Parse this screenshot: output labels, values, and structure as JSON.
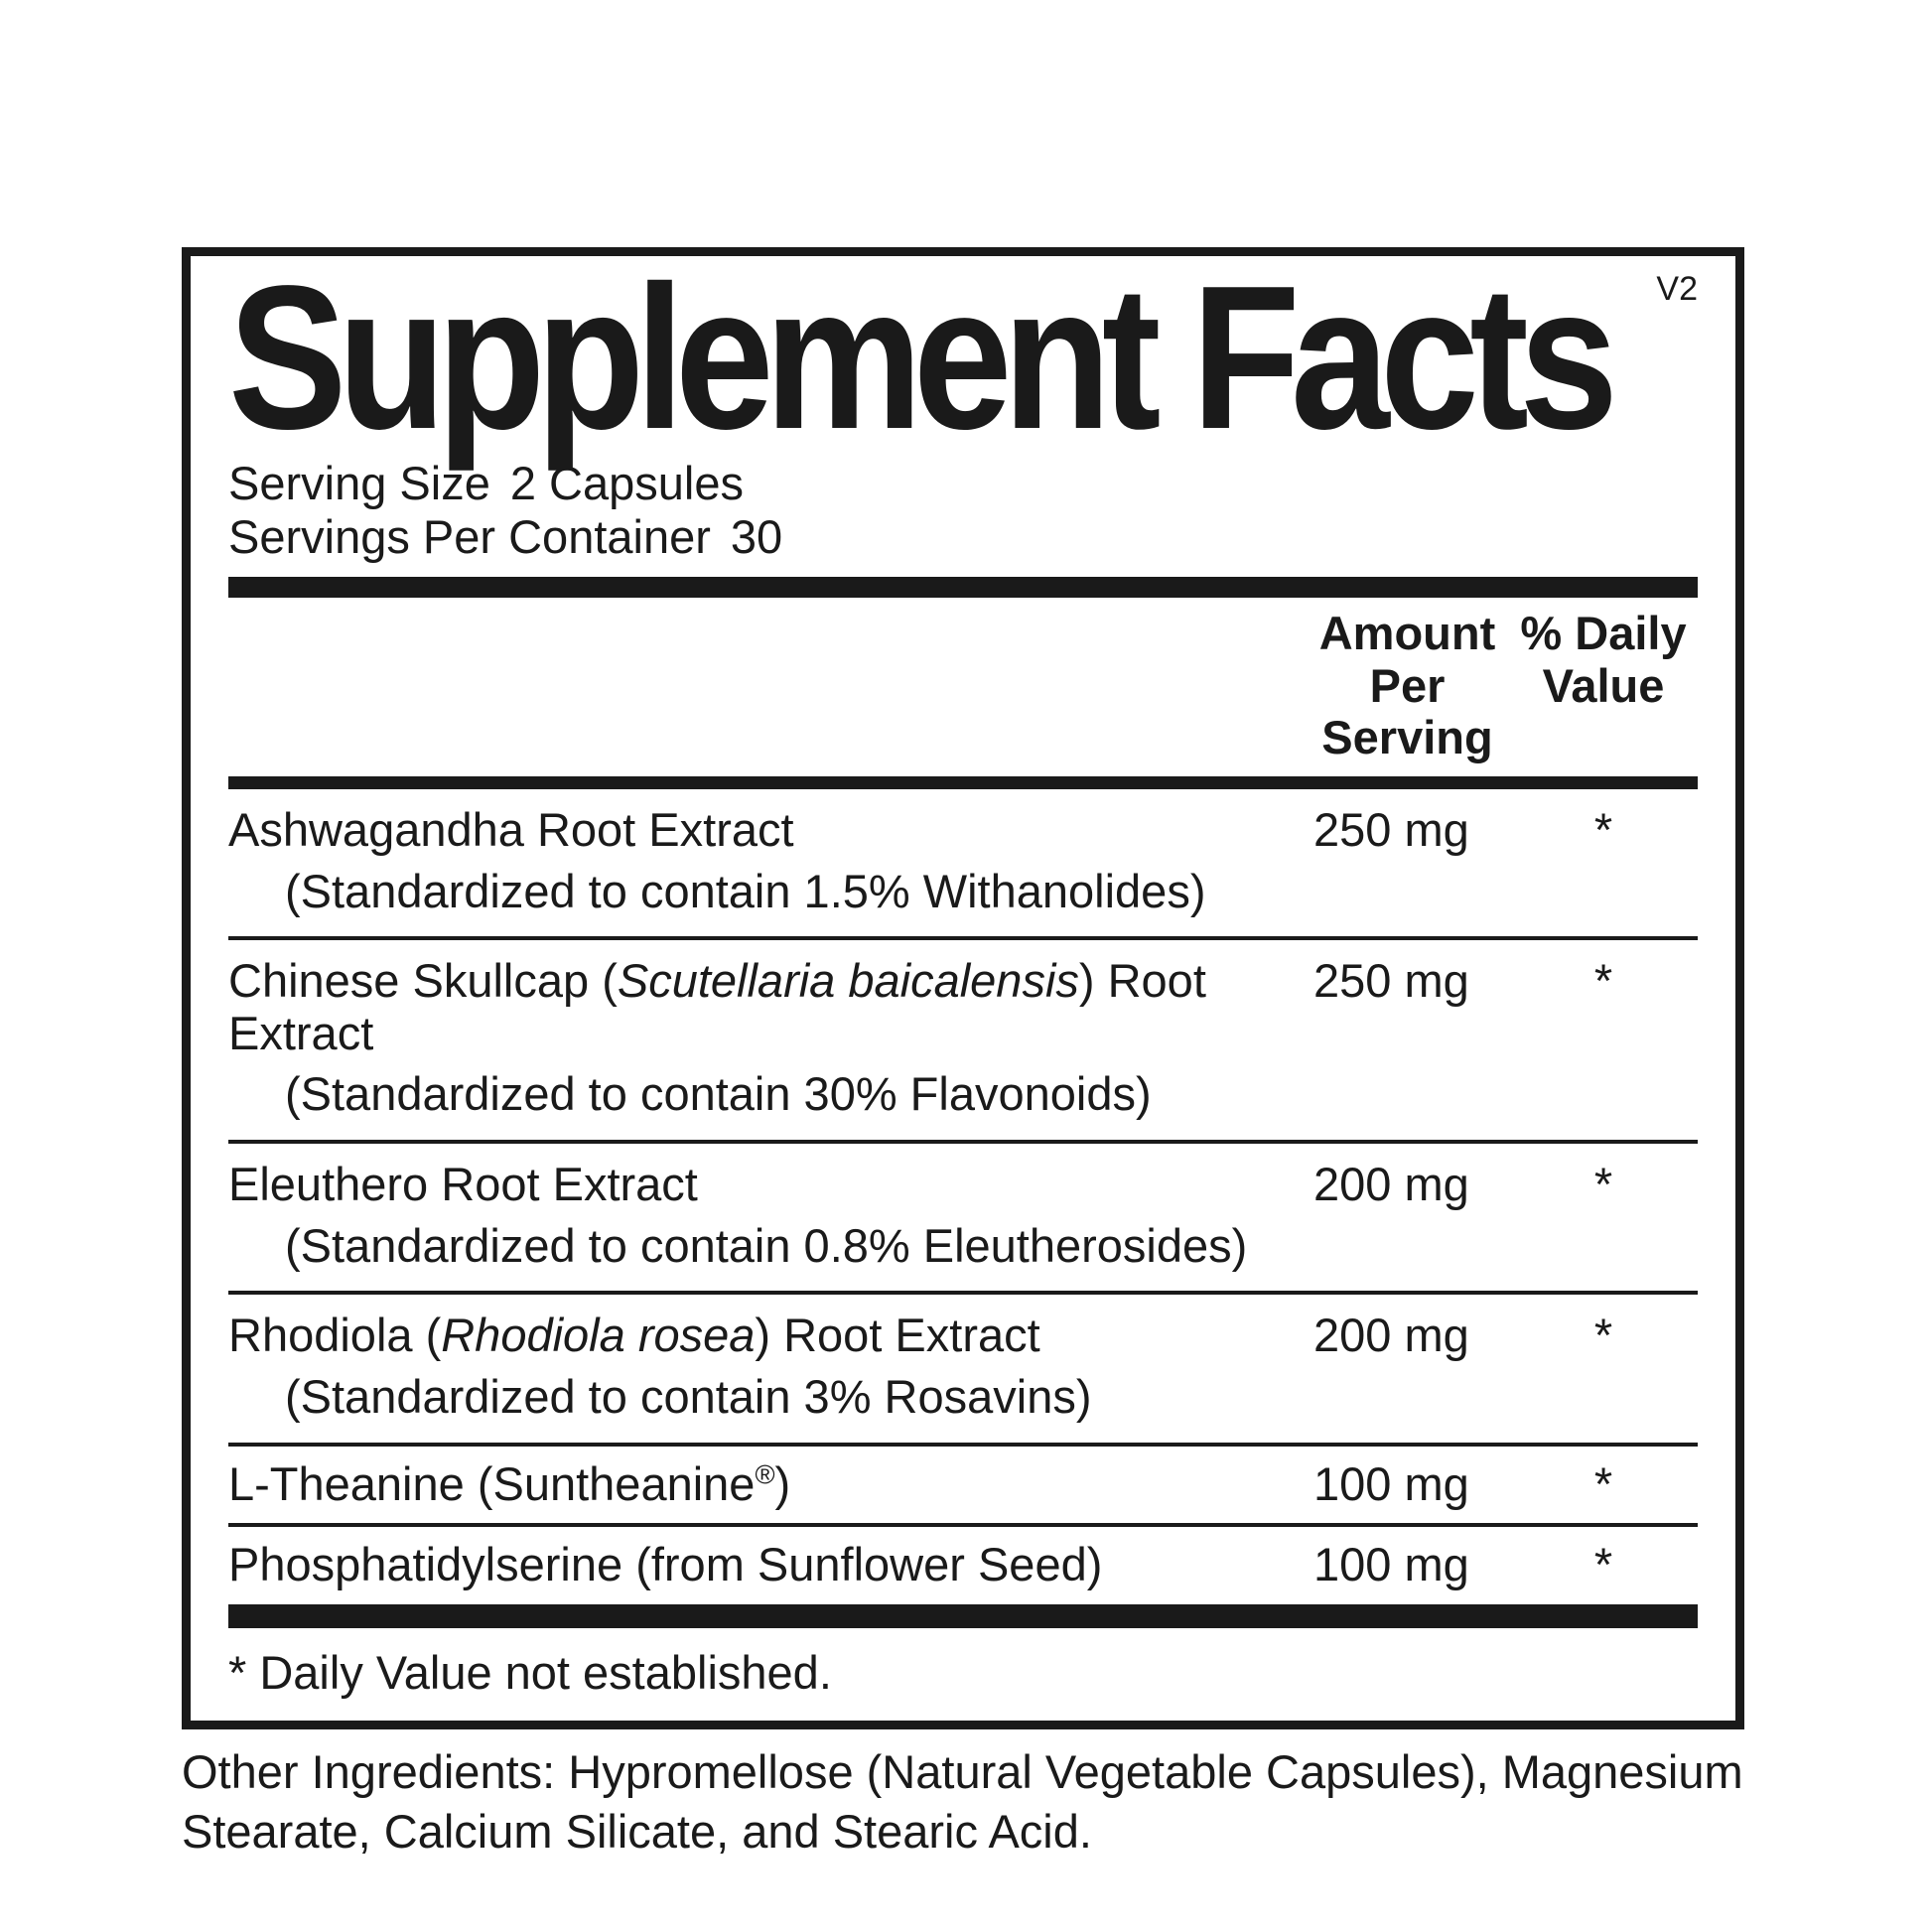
{
  "header": {
    "title": "Supplement Facts",
    "version": "V2"
  },
  "serving_info": {
    "serving_size_label": "Serving Size",
    "serving_size_value": "2 Capsules",
    "servings_per_container_label": "Servings Per Container",
    "servings_per_container_value": "30"
  },
  "table": {
    "col_amount_line1": "Amount Per",
    "col_amount_line2": "Serving",
    "col_dv_line1": "% Daily",
    "col_dv_line2": "Value",
    "rows": [
      {
        "prefix": "Ashwagandha Root Extract",
        "italic": "",
        "sup": "",
        "suffix": "",
        "sub": "(Standardized to contain 1.5% Withanolides)",
        "amount": "250 mg",
        "dv": "*"
      },
      {
        "prefix": "Chinese Skullcap (",
        "italic": "Scutellaria baicalensis",
        "sup": "",
        "suffix": ") Root Extract",
        "sub": "(Standardized to contain 30% Flavonoids)",
        "amount": "250 mg",
        "dv": "*"
      },
      {
        "prefix": "Eleuthero Root Extract",
        "italic": "",
        "sup": "",
        "suffix": "",
        "sub": "(Standardized to contain 0.8% Eleutherosides)",
        "amount": "200 mg",
        "dv": "*"
      },
      {
        "prefix": "Rhodiola (",
        "italic": "Rhodiola rosea",
        "sup": "",
        "suffix": ") Root Extract",
        "sub": "(Standardized to contain 3% Rosavins)",
        "amount": "200 mg",
        "dv": "*"
      },
      {
        "prefix": "L-Theanine (Suntheanine",
        "italic": "",
        "sup": "®",
        "suffix": ")",
        "sub": "",
        "amount": "100 mg",
        "dv": "*"
      },
      {
        "prefix": "Phosphatidylserine (from Sunflower Seed)",
        "italic": "",
        "sup": "",
        "suffix": "",
        "sub": "",
        "amount": "100 mg",
        "dv": "*"
      }
    ]
  },
  "footnote": "* Daily Value not established.",
  "other_ingredients": "Other Ingredients: Hypromellose (Natural Vegetable Capsules), Magnesium Stearate, Calcium Silicate, and Stearic Acid.",
  "colors": {
    "text": "#1a1a1a",
    "background": "#ffffff"
  }
}
